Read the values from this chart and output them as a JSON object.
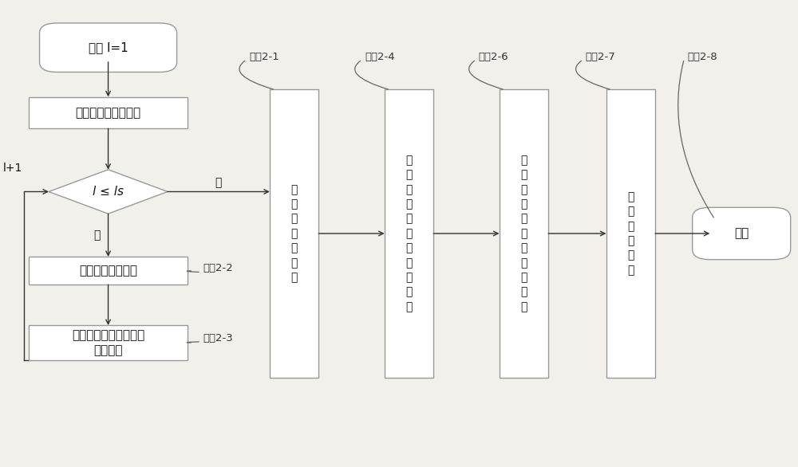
{
  "bg_color": "#f2f0eb",
  "box_color": "#ffffff",
  "box_edge": "#999999",
  "arrow_color": "#333333",
  "text_color": "#111111",
  "label_color": "#333333",
  "fig_w": 10.0,
  "fig_h": 5.86,
  "dpi": 100,
  "start_text": "开始 l=1",
  "box1_text": "构造语音阻塞滤波器",
  "diamond_text": "l ≤ ls",
  "box2_text": "估计平稳噪音分量",
  "box3_text": "估计平稳噪音分量的功\n率谱密度",
  "t1_text": "计\n算\n期\n望\n平\n均\n值",
  "t2_text": "计\n算\n两\n个\n通\n道\n的\n平\n稳\n噪\n音",
  "t3_text": "计\n算\n减\n谱\n后\n的\n功\n率\n谱\n密\n度",
  "t4_text": "抑\n制\n平\n稳\n噪\n音",
  "end_text": "结束",
  "yes_text": "是",
  "no_text": "否",
  "lplus1_text": "l+1",
  "step21_text": "步骤2-1",
  "step24_text": "步骤2-4",
  "step26_text": "步骤2-6",
  "step27_text": "步骤2-7",
  "step28_text": "步骤2-8",
  "step22_text": "步骤2-2",
  "step23_text": "步骤2-3"
}
